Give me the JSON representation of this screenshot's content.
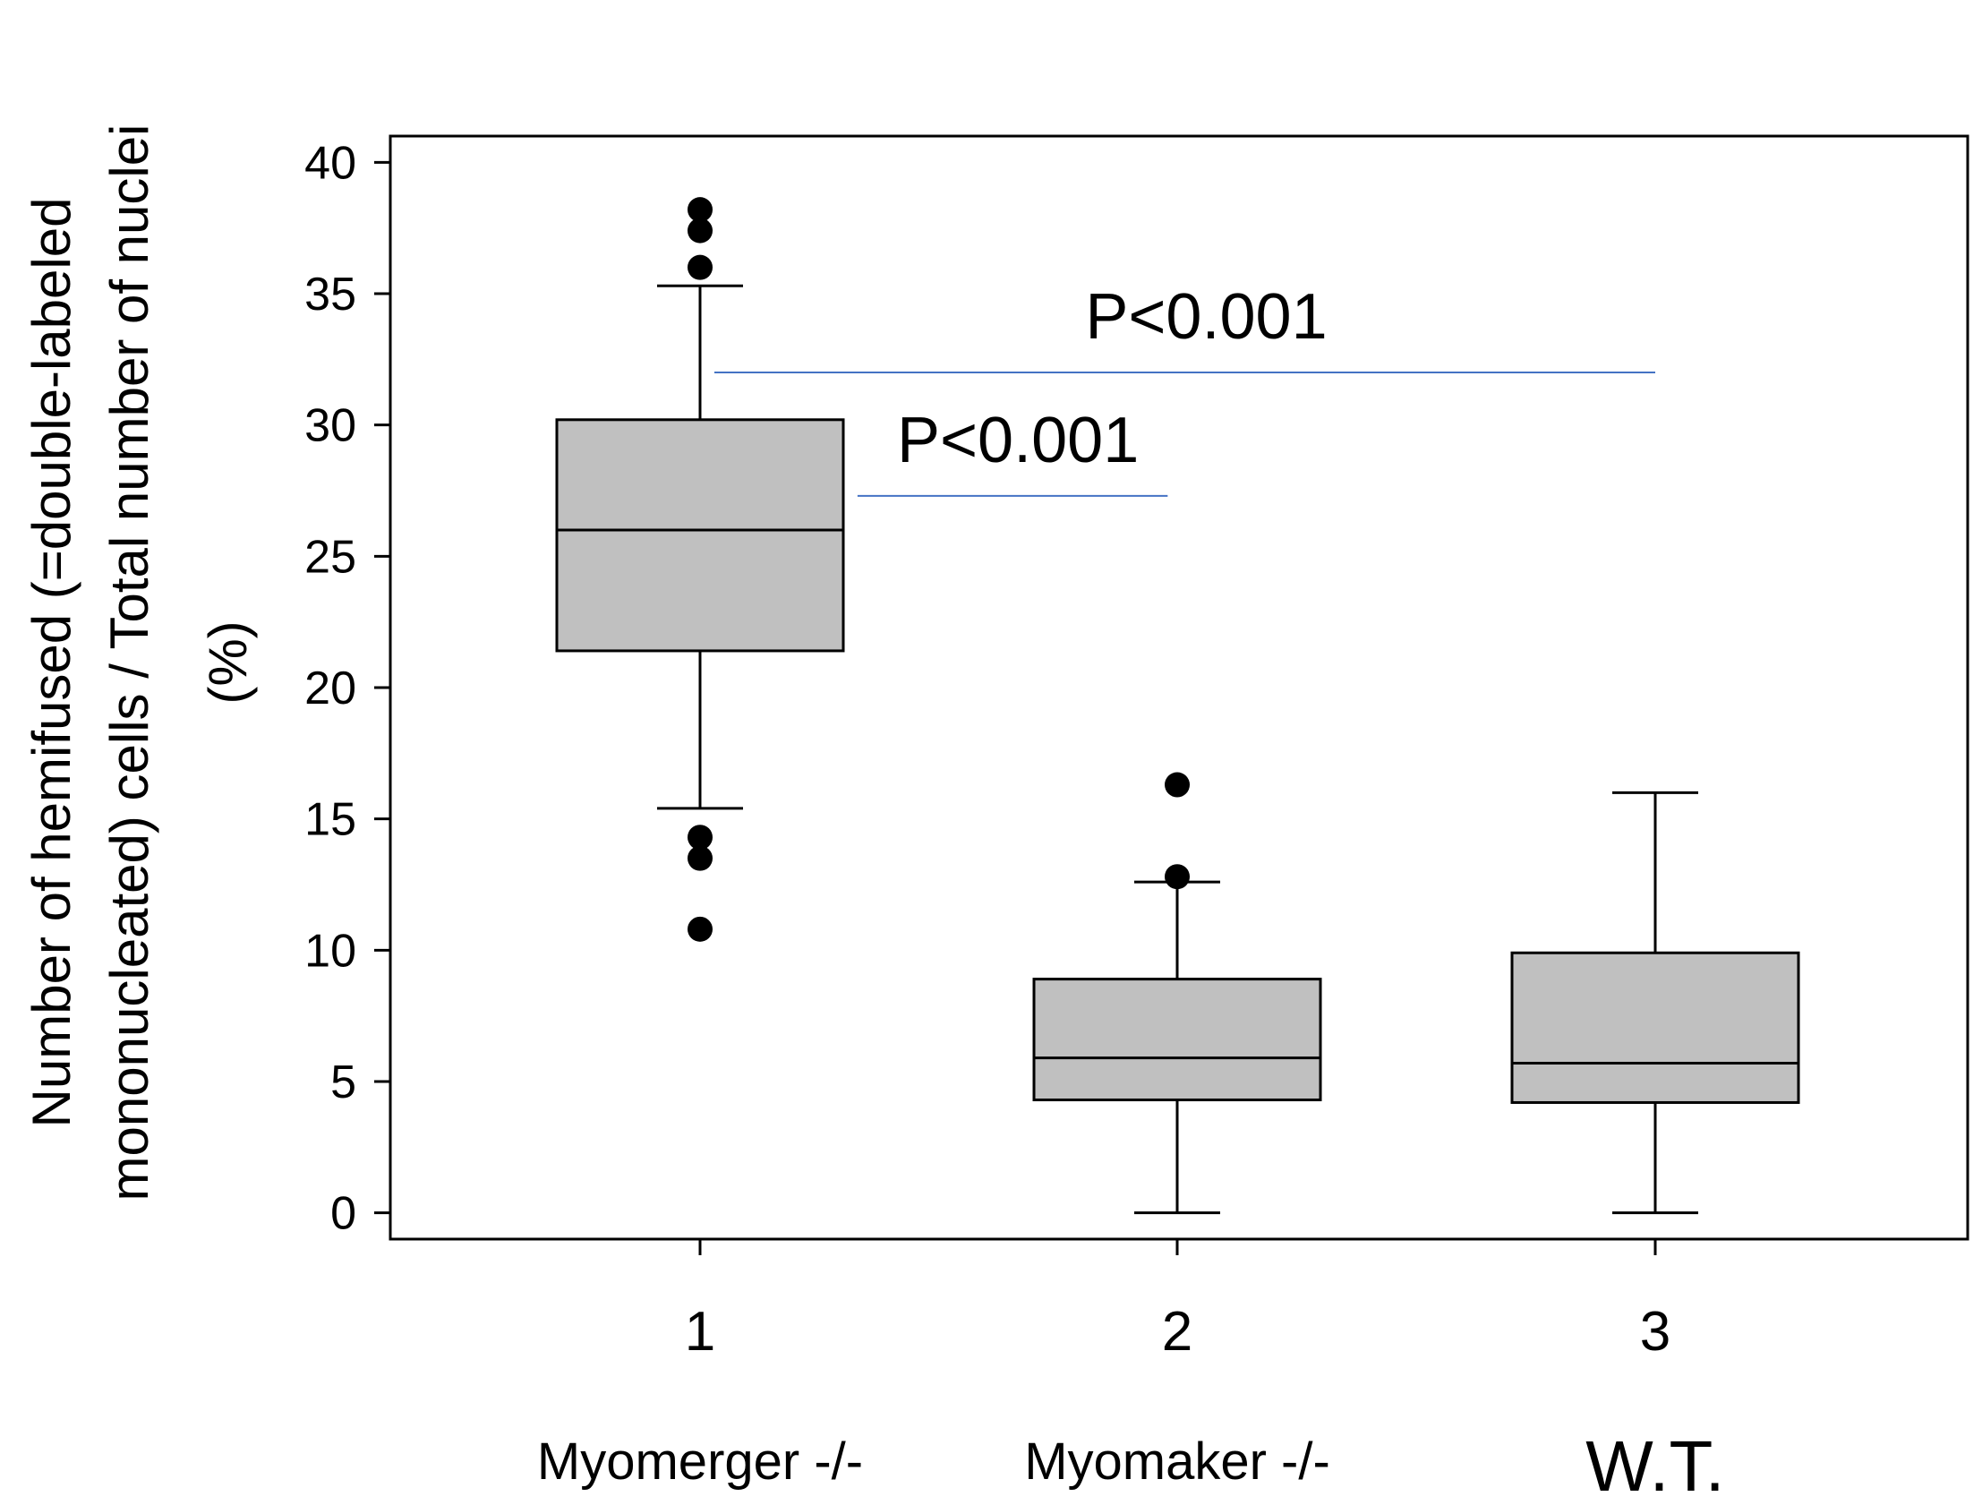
{
  "chart_data": {
    "type": "box",
    "ylabel_lines": [
      "Number of hemifused (=double-labeled",
      "mononucleated) cells / Total number of nuclei",
      "(%)"
    ],
    "ylim": [
      -1,
      41
    ],
    "yticks": [
      "0",
      "5",
      "10",
      "15",
      "20",
      "25",
      "30",
      "35",
      "40"
    ],
    "categories": [
      "1",
      "2",
      "3"
    ],
    "group_labels": [
      "Myomerger -/-",
      "Myomaker -/-",
      "W.T."
    ],
    "box_color": "#c0c0c0",
    "line_color": "#4472c4",
    "boxes": [
      {
        "whisker_low": 15.4,
        "q1": 21.4,
        "median": 26.0,
        "q3": 30.2,
        "whisker_high": 35.3,
        "outliers": [
          38.2,
          37.4,
          36.0,
          14.3,
          13.5,
          10.8
        ]
      },
      {
        "whisker_low": 0.0,
        "q1": 4.3,
        "median": 5.9,
        "q3": 8.9,
        "whisker_high": 12.6,
        "outliers": [
          16.3,
          12.8
        ]
      },
      {
        "whisker_low": 0.0,
        "q1": 4.2,
        "median": 5.7,
        "q3": 9.9,
        "whisker_high": 16.0,
        "outliers": []
      }
    ],
    "annotations": [
      {
        "text": "P<0.001",
        "line_y": 32.0,
        "from_x": 1.03,
        "to_x": 3.0
      },
      {
        "text": "P<0.001",
        "line_y": 27.3,
        "from_x": 1.33,
        "to_x": 1.98
      }
    ]
  }
}
